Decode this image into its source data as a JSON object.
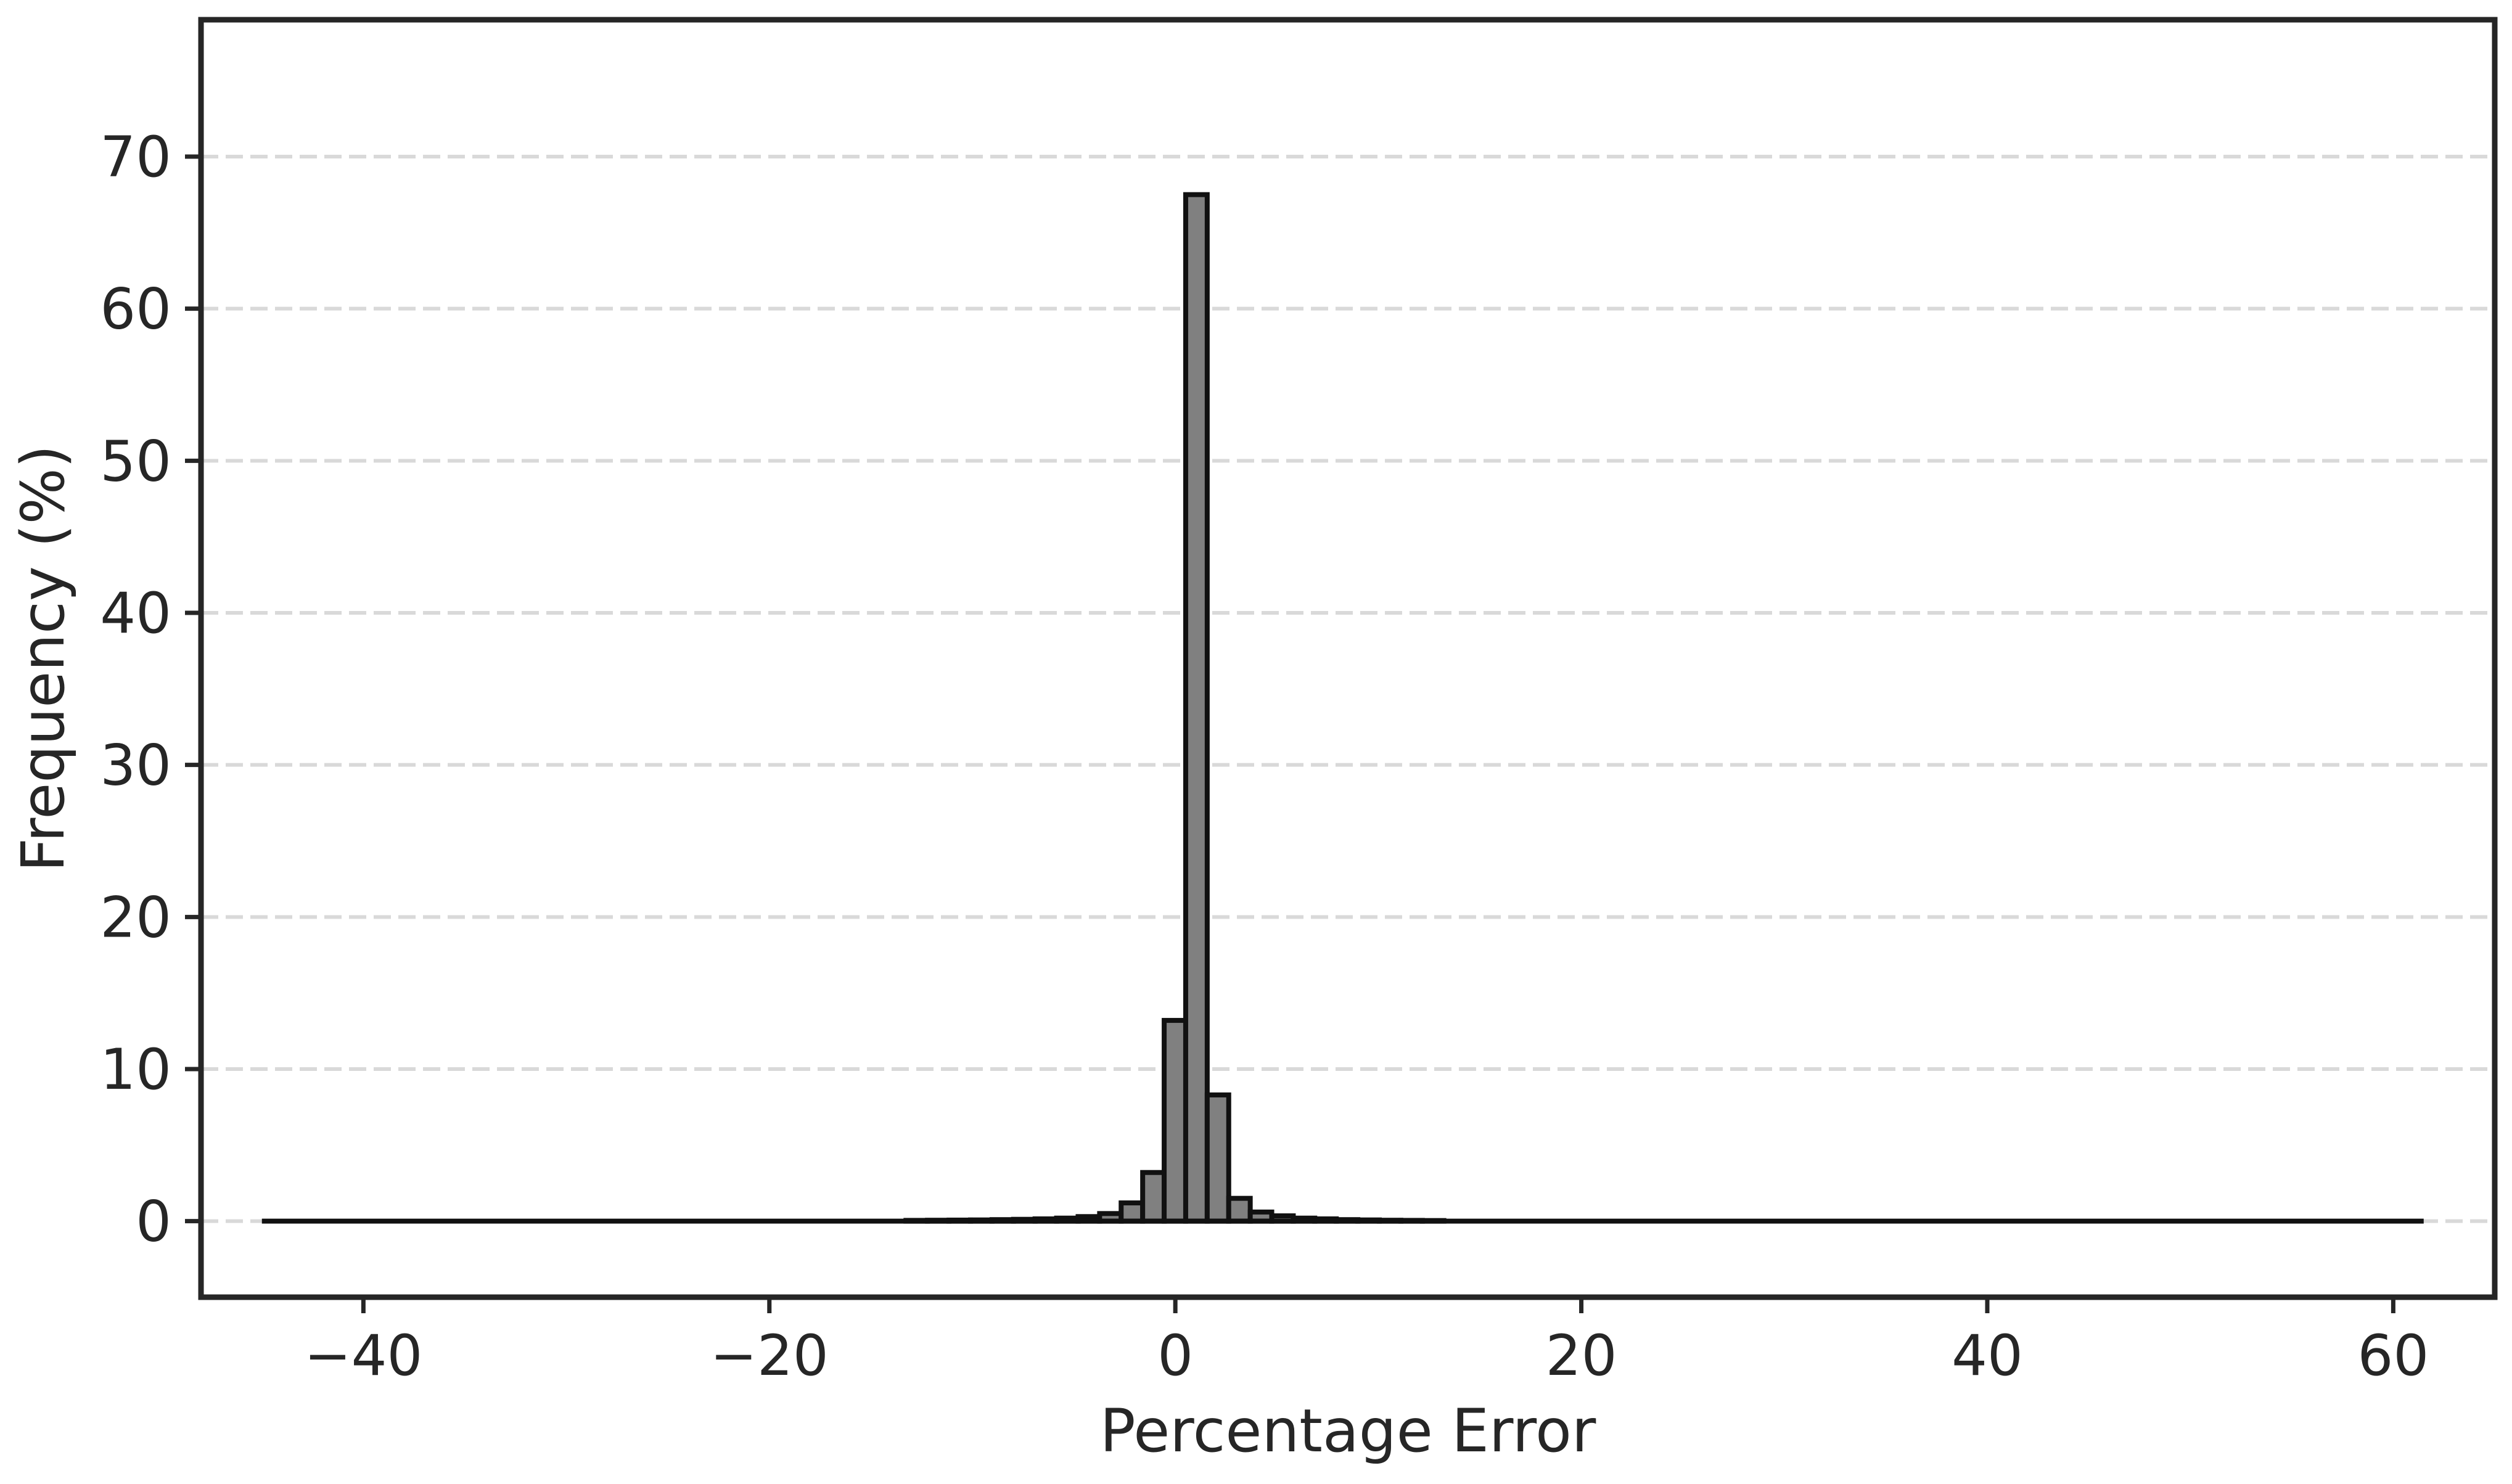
{
  "chart_data": {
    "type": "bar",
    "title": "",
    "xlabel": "Percentage Error",
    "ylabel": "Frequency (%)",
    "xlim": [
      -48,
      65
    ],
    "ylim": [
      -5,
      79
    ],
    "x_ticks": [
      -40,
      -20,
      0,
      20,
      40,
      60
    ],
    "x_tick_labels": [
      "−40",
      "−20",
      "0",
      "20",
      "40",
      "60"
    ],
    "y_ticks": [
      0,
      10,
      20,
      30,
      40,
      50,
      60,
      70
    ],
    "y_tick_labels": [
      "0",
      "10",
      "20",
      "30",
      "40",
      "50",
      "60",
      "70"
    ],
    "grid": "horizontal dashed",
    "bar_color": "#808080",
    "edge_color": "#111111",
    "data_range": [
      -45,
      61.5
    ],
    "bin_width": 1.06,
    "bins": [
      {
        "x0": -13.27,
        "value": 0.05
      },
      {
        "x0": -12.21,
        "value": 0.06
      },
      {
        "x0": -11.15,
        "value": 0.07
      },
      {
        "x0": -10.09,
        "value": 0.08
      },
      {
        "x0": -9.03,
        "value": 0.1
      },
      {
        "x0": -7.97,
        "value": 0.12
      },
      {
        "x0": -6.91,
        "value": 0.15
      },
      {
        "x0": -5.85,
        "value": 0.2
      },
      {
        "x0": -4.79,
        "value": 0.3
      },
      {
        "x0": -3.73,
        "value": 0.5
      },
      {
        "x0": -2.67,
        "value": 1.2
      },
      {
        "x0": -1.61,
        "value": 3.2
      },
      {
        "x0": -0.55,
        "value": 13.2
      },
      {
        "x0": 0.51,
        "value": 67.5
      },
      {
        "x0": 1.57,
        "value": 8.3
      },
      {
        "x0": 2.63,
        "value": 1.5
      },
      {
        "x0": 3.69,
        "value": 0.6
      },
      {
        "x0": 4.75,
        "value": 0.35
      },
      {
        "x0": 5.81,
        "value": 0.2
      },
      {
        "x0": 6.87,
        "value": 0.15
      },
      {
        "x0": 7.93,
        "value": 0.1
      },
      {
        "x0": 8.99,
        "value": 0.08
      },
      {
        "x0": 10.05,
        "value": 0.06
      },
      {
        "x0": 11.11,
        "value": 0.05
      },
      {
        "x0": 12.17,
        "value": 0.04
      }
    ]
  }
}
